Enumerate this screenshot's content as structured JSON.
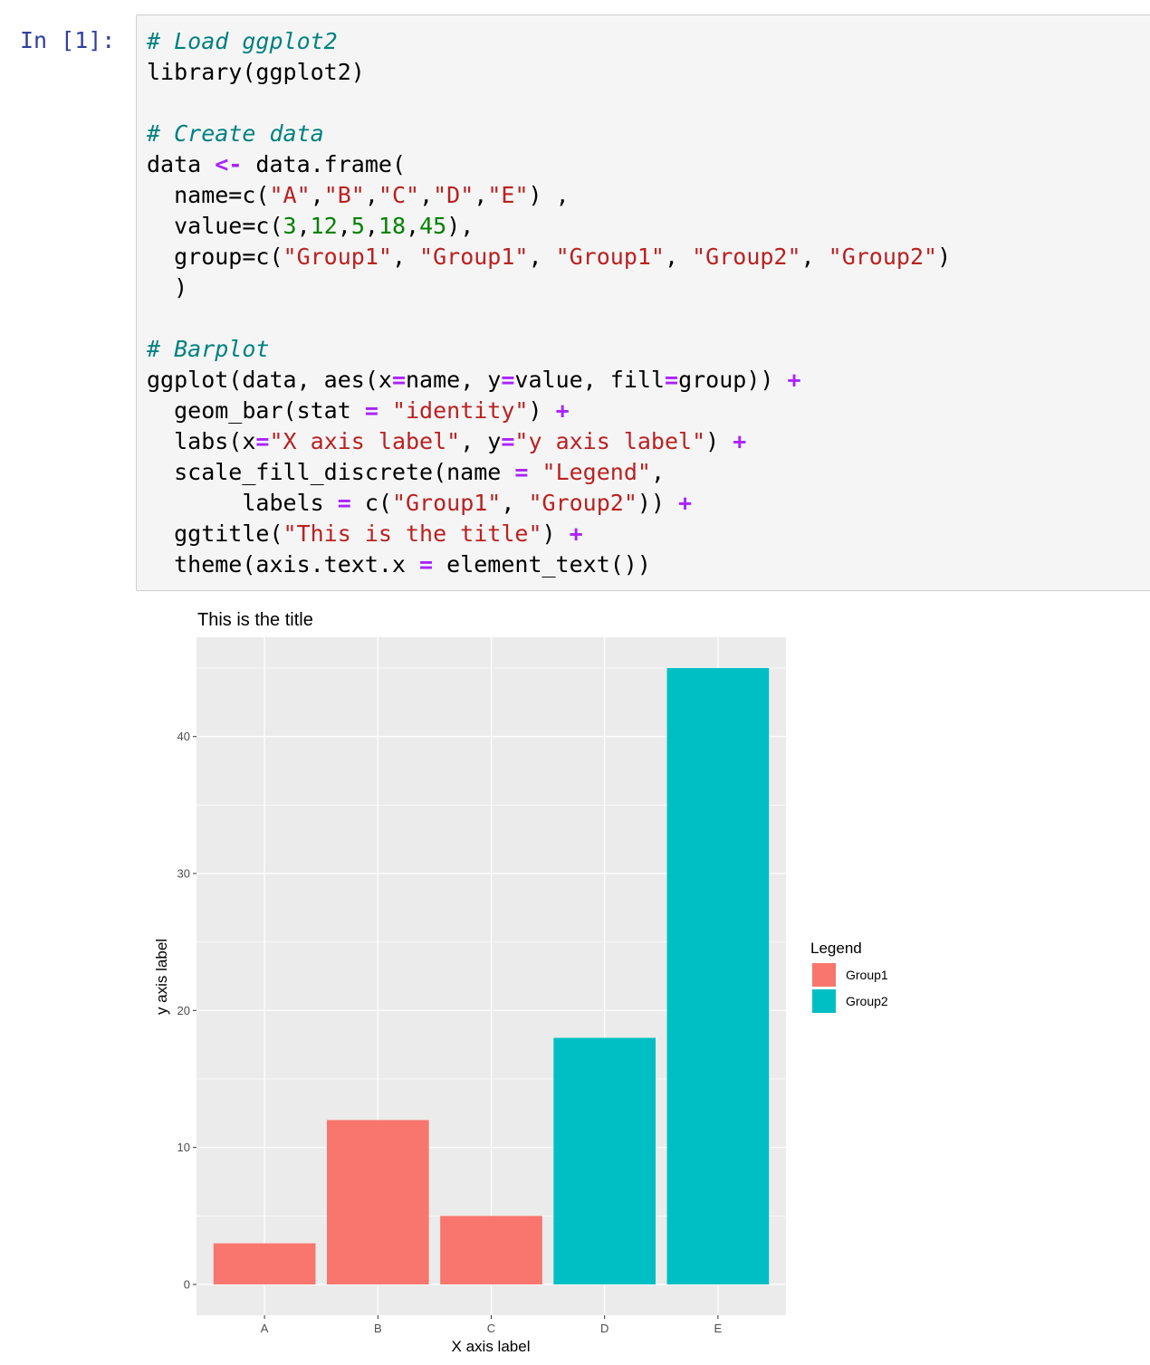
{
  "cell": {
    "prompt": "In [1]:",
    "code_lines": [
      [
        {
          "t": "# Load ggplot2",
          "c": "c"
        }
      ],
      [
        {
          "t": "library(ggplot2)",
          "c": ""
        }
      ],
      [],
      [
        {
          "t": "# Create data",
          "c": "c"
        }
      ],
      [
        {
          "t": "data ",
          "c": ""
        },
        {
          "t": "<-",
          "c": "o"
        },
        {
          "t": " data.frame(",
          "c": ""
        }
      ],
      [
        {
          "t": "  name=c(",
          "c": ""
        },
        {
          "t": "\"A\"",
          "c": "s"
        },
        {
          "t": ",",
          "c": ""
        },
        {
          "t": "\"B\"",
          "c": "s"
        },
        {
          "t": ",",
          "c": ""
        },
        {
          "t": "\"C\"",
          "c": "s"
        },
        {
          "t": ",",
          "c": ""
        },
        {
          "t": "\"D\"",
          "c": "s"
        },
        {
          "t": ",",
          "c": ""
        },
        {
          "t": "\"E\"",
          "c": "s"
        },
        {
          "t": ") ,",
          "c": ""
        }
      ],
      [
        {
          "t": "  value=c(",
          "c": ""
        },
        {
          "t": "3",
          "c": "n"
        },
        {
          "t": ",",
          "c": ""
        },
        {
          "t": "12",
          "c": "n"
        },
        {
          "t": ",",
          "c": ""
        },
        {
          "t": "5",
          "c": "n"
        },
        {
          "t": ",",
          "c": ""
        },
        {
          "t": "18",
          "c": "n"
        },
        {
          "t": ",",
          "c": ""
        },
        {
          "t": "45",
          "c": "n"
        },
        {
          "t": "),",
          "c": ""
        }
      ],
      [
        {
          "t": "  group=c(",
          "c": ""
        },
        {
          "t": "\"Group1\"",
          "c": "s"
        },
        {
          "t": ", ",
          "c": ""
        },
        {
          "t": "\"Group1\"",
          "c": "s"
        },
        {
          "t": ", ",
          "c": ""
        },
        {
          "t": "\"Group1\"",
          "c": "s"
        },
        {
          "t": ", ",
          "c": ""
        },
        {
          "t": "\"Group2\"",
          "c": "s"
        },
        {
          "t": ", ",
          "c": ""
        },
        {
          "t": "\"Group2\"",
          "c": "s"
        },
        {
          "t": ")",
          "c": ""
        }
      ],
      [
        {
          "t": "  )",
          "c": ""
        }
      ],
      [],
      [
        {
          "t": "# Barplot",
          "c": "c"
        }
      ],
      [
        {
          "t": "ggplot(data, aes(x",
          "c": ""
        },
        {
          "t": "=",
          "c": "o"
        },
        {
          "t": "name, y",
          "c": ""
        },
        {
          "t": "=",
          "c": "o"
        },
        {
          "t": "value, fill",
          "c": ""
        },
        {
          "t": "=",
          "c": "o"
        },
        {
          "t": "group)) ",
          "c": ""
        },
        {
          "t": "+",
          "c": "o"
        }
      ],
      [
        {
          "t": "  geom_bar(stat ",
          "c": ""
        },
        {
          "t": "=",
          "c": "o"
        },
        {
          "t": " ",
          "c": ""
        },
        {
          "t": "\"identity\"",
          "c": "s"
        },
        {
          "t": ") ",
          "c": ""
        },
        {
          "t": "+",
          "c": "o"
        }
      ],
      [
        {
          "t": "  labs(x",
          "c": ""
        },
        {
          "t": "=",
          "c": "o"
        },
        {
          "t": "\"X axis label\"",
          "c": "s"
        },
        {
          "t": ", y",
          "c": ""
        },
        {
          "t": "=",
          "c": "o"
        },
        {
          "t": "\"y axis label\"",
          "c": "s"
        },
        {
          "t": ") ",
          "c": ""
        },
        {
          "t": "+",
          "c": "o"
        }
      ],
      [
        {
          "t": "  scale_fill_discrete(name ",
          "c": ""
        },
        {
          "t": "=",
          "c": "o"
        },
        {
          "t": " ",
          "c": ""
        },
        {
          "t": "\"Legend\"",
          "c": "s"
        },
        {
          "t": ",",
          "c": ""
        }
      ],
      [
        {
          "t": "       labels ",
          "c": ""
        },
        {
          "t": "=",
          "c": "o"
        },
        {
          "t": " c(",
          "c": ""
        },
        {
          "t": "\"Group1\"",
          "c": "s"
        },
        {
          "t": ", ",
          "c": ""
        },
        {
          "t": "\"Group2\"",
          "c": "s"
        },
        {
          "t": ")) ",
          "c": ""
        },
        {
          "t": "+",
          "c": "o"
        }
      ],
      [
        {
          "t": "  ggtitle(",
          "c": ""
        },
        {
          "t": "\"This is the title\"",
          "c": "s"
        },
        {
          "t": ") ",
          "c": ""
        },
        {
          "t": "+",
          "c": "o"
        }
      ],
      [
        {
          "t": "  theme(axis.text.x ",
          "c": ""
        },
        {
          "t": "=",
          "c": "o"
        },
        {
          "t": " element_text())",
          "c": ""
        }
      ]
    ]
  },
  "chart_data": {
    "type": "bar",
    "title": "This is the title",
    "xlabel": "X axis label",
    "ylabel": "y axis label",
    "categories": [
      "A",
      "B",
      "C",
      "D",
      "E"
    ],
    "values": [
      3,
      12,
      5,
      18,
      45
    ],
    "groups": [
      "Group1",
      "Group1",
      "Group1",
      "Group2",
      "Group2"
    ],
    "ylim": [
      -2.25,
      47.25
    ],
    "yticks": [
      0,
      10,
      20,
      30,
      40
    ],
    "grid": true,
    "panel_background": "#ebebeb",
    "legend": {
      "title": "Legend",
      "placement": "right",
      "entries": [
        {
          "label": "Group1",
          "color": "#f8766d"
        },
        {
          "label": "Group2",
          "color": "#00bfc4"
        }
      ]
    }
  }
}
